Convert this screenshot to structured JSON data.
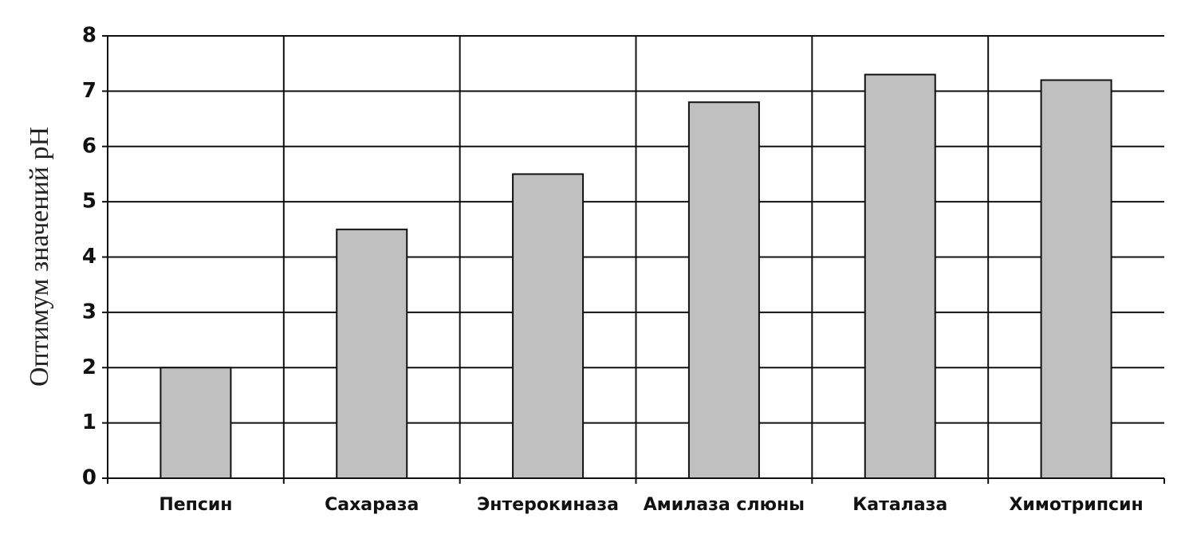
{
  "chart_data": {
    "type": "bar",
    "y_label": "Оптимум значений pH",
    "categories": [
      "Пепсин",
      "Сахараза",
      "Энтерокиназа",
      "Амилаза слюны",
      "Каталаза",
      "Химотрипсин"
    ],
    "values": [
      2,
      4.5,
      5.5,
      6.8,
      7.3,
      7.2
    ],
    "color": "#c0c0c0",
    "ylim": [
      0,
      8
    ],
    "yticks": [
      0,
      1,
      2,
      3,
      4,
      5,
      6,
      7,
      8
    ],
    "grid": true
  }
}
